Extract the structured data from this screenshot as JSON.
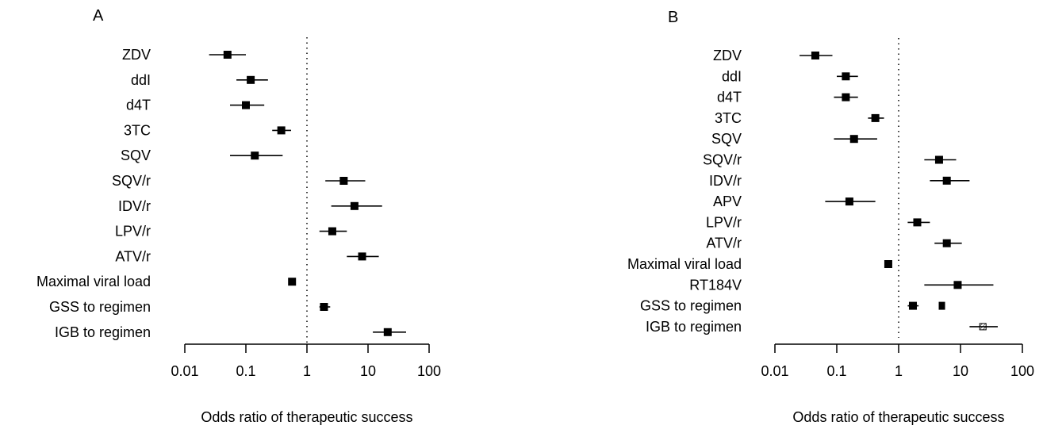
{
  "chart_data": [
    {
      "panel_label": "A",
      "type": "forest",
      "xlabel": "Odds ratio of therapeutic success",
      "x_scale": "log",
      "xlim": [
        0.01,
        100
      ],
      "xticks": [
        "0.01",
        "0.1",
        "1",
        "10",
        "100"
      ],
      "reference_line": 1,
      "rows": [
        {
          "label": "ZDV",
          "or": 0.05,
          "lo": 0.025,
          "hi": 0.1
        },
        {
          "label": "ddI",
          "or": 0.12,
          "lo": 0.07,
          "hi": 0.23
        },
        {
          "label": "d4T",
          "or": 0.1,
          "lo": 0.055,
          "hi": 0.2
        },
        {
          "label": "3TC",
          "or": 0.38,
          "lo": 0.27,
          "hi": 0.55
        },
        {
          "label": "SQV",
          "or": 0.14,
          "lo": 0.055,
          "hi": 0.4
        },
        {
          "label": "SQV/r",
          "or": 4.0,
          "lo": 2.0,
          "hi": 9.0
        },
        {
          "label": "IDV/r",
          "or": 6.0,
          "lo": 2.5,
          "hi": 17.0
        },
        {
          "label": "LPV/r",
          "or": 2.6,
          "lo": 1.6,
          "hi": 4.5
        },
        {
          "label": "ATV/r",
          "or": 8.0,
          "lo": 4.5,
          "hi": 15.0
        },
        {
          "label": "Maximal viral load",
          "or": 0.57,
          "lo": 0.5,
          "hi": 0.65
        },
        {
          "label": "GSS to regimen",
          "or": 1.9,
          "lo": 1.6,
          "hi": 2.4
        },
        {
          "label": "IGB to regimen",
          "or": 21.0,
          "lo": 12.0,
          "hi": 42.0
        }
      ]
    },
    {
      "panel_label": "B",
      "type": "forest",
      "xlabel": "Odds ratio of therapeutic success",
      "x_scale": "log",
      "xlim": [
        0.01,
        100
      ],
      "xticks": [
        "0.01",
        "0.1",
        "1",
        "10",
        "100"
      ],
      "reference_line": 1,
      "rows": [
        {
          "label": "ZDV",
          "or": 0.045,
          "lo": 0.025,
          "hi": 0.085
        },
        {
          "label": "ddI",
          "or": 0.14,
          "lo": 0.1,
          "hi": 0.22
        },
        {
          "label": "d4T",
          "or": 0.14,
          "lo": 0.09,
          "hi": 0.22
        },
        {
          "label": "3TC",
          "or": 0.42,
          "lo": 0.32,
          "hi": 0.58
        },
        {
          "label": "SQV",
          "or": 0.19,
          "lo": 0.09,
          "hi": 0.45
        },
        {
          "label": "SQV/r",
          "or": 4.5,
          "lo": 2.6,
          "hi": 8.5
        },
        {
          "label": "IDV/r",
          "or": 6.0,
          "lo": 3.2,
          "hi": 14.0
        },
        {
          "label": "APV",
          "or": 0.16,
          "lo": 0.065,
          "hi": 0.42
        },
        {
          "label": "LPV/r",
          "or": 2.0,
          "lo": 1.4,
          "hi": 3.2
        },
        {
          "label": "ATV/r",
          "or": 6.0,
          "lo": 3.8,
          "hi": 10.5
        },
        {
          "label": "Maximal viral load",
          "or": 0.68,
          "lo": 0.6,
          "hi": 0.78
        },
        {
          "label": "RT184V",
          "or": 9.0,
          "lo": 2.6,
          "hi": 34.0
        },
        {
          "label": "GSS to regimen",
          "or": 1.7,
          "lo": 1.4,
          "hi": 2.1,
          "extra_marker": 5.0
        },
        {
          "label": "IGB to regimen",
          "or": 23.0,
          "lo": 14.0,
          "hi": 40.0,
          "marker_style": "hatched"
        }
      ]
    }
  ]
}
